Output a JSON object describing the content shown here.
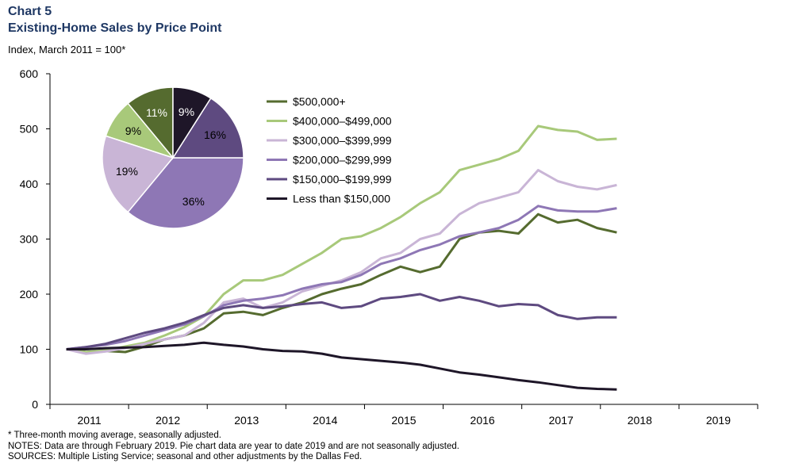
{
  "header": {
    "chart_number": "Chart 5",
    "title": "Existing-Home Sales by Price Point",
    "subtitle": "Index, March 2011 = 100*"
  },
  "notes": [
    "* Three-month  moving average,  seasonally adjusted.",
    "NOTES: Data are through February 2019. Pie chart data are year to date 2019 and are not seasonally adjusted.",
    "SOURCES: Multiple Listing Service; seasonal and other adjustments by the Dallas Fed."
  ],
  "chart_data": [
    {
      "type": "line",
      "title": "Existing-Home Sales by Price Point",
      "ylabel": "Index, March 2011 = 100*",
      "ylim": [
        0,
        600
      ],
      "yticks": [
        0,
        100,
        200,
        300,
        400,
        500,
        600
      ],
      "xlim": [
        2010.5,
        2019.5
      ],
      "xticks": [
        "2011",
        "2012",
        "2013",
        "2014",
        "2015",
        "2016",
        "2017",
        "2018",
        "2019"
      ],
      "legend_position": "top-center",
      "grid": false,
      "x_start": "2011-03",
      "x_step": "quarter",
      "series": [
        {
          "name": "$500,000+",
          "color": "#556b2f",
          "values": [
            100,
            95,
            97,
            95,
            105,
            118,
            125,
            138,
            165,
            168,
            162,
            175,
            185,
            200,
            210,
            218,
            235,
            250,
            240,
            250,
            300,
            312,
            315,
            310,
            345,
            330,
            335,
            320,
            312
          ]
        },
        {
          "name": "$400,000–$499,000",
          "color": "#a8c97a",
          "values": [
            100,
            95,
            98,
            105,
            112,
            125,
            140,
            160,
            200,
            225,
            225,
            235,
            255,
            275,
            300,
            305,
            320,
            340,
            365,
            385,
            425,
            435,
            445,
            460,
            505,
            498,
            495,
            480,
            482
          ]
        },
        {
          "name": "$300,000–$399,999",
          "color": "#c9b5d6",
          "values": [
            100,
            92,
            96,
            102,
            110,
            118,
            125,
            148,
            185,
            192,
            175,
            185,
            205,
            215,
            225,
            240,
            265,
            275,
            300,
            310,
            345,
            365,
            375,
            385,
            425,
            405,
            395,
            390,
            398
          ]
        },
        {
          "name": "$200,000–$299,999",
          "color": "#8e77b5",
          "values": [
            100,
            104,
            108,
            115,
            125,
            135,
            145,
            160,
            180,
            188,
            192,
            198,
            210,
            218,
            222,
            235,
            255,
            265,
            280,
            290,
            305,
            312,
            320,
            335,
            360,
            352,
            350,
            350,
            356
          ]
        },
        {
          "name": "$150,000–$199,999",
          "color": "#5e4a80",
          "values": [
            100,
            104,
            110,
            120,
            130,
            138,
            148,
            162,
            175,
            180,
            175,
            178,
            182,
            185,
            175,
            178,
            192,
            195,
            200,
            188,
            195,
            188,
            178,
            182,
            180,
            162,
            155,
            158,
            158
          ]
        },
        {
          "name": "Less than $150,000",
          "color": "#1e1628",
          "values": [
            100,
            100,
            102,
            103,
            104,
            106,
            108,
            112,
            108,
            105,
            100,
            97,
            96,
            92,
            85,
            82,
            79,
            76,
            72,
            65,
            58,
            54,
            49,
            44,
            40,
            35,
            30,
            28,
            27
          ]
        }
      ]
    },
    {
      "type": "pie",
      "labels": [
        "$500,000+",
        "$400,000–$499,000",
        "$300,000–$399,999",
        "$200,000–$299,999",
        "$150,000–$199,999",
        "Less than $150,000"
      ],
      "values": [
        11,
        9,
        19,
        36,
        16,
        9
      ],
      "value_labels": [
        "11%",
        "9%",
        "19%",
        "36%",
        "16%",
        "9%"
      ],
      "colors": [
        "#556b2f",
        "#a8c97a",
        "#c9b5d6",
        "#8e77b5",
        "#5e4a80",
        "#1e1628"
      ]
    }
  ]
}
